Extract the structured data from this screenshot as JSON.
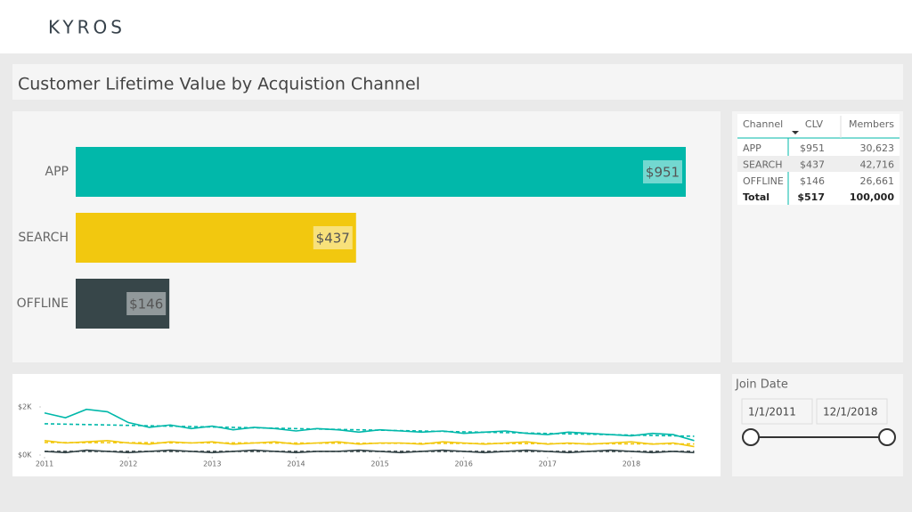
{
  "header": {
    "logo": "KYROS"
  },
  "title": "Customer Lifetime Value by Acquistion Channel",
  "bar_chart": {
    "type": "bar",
    "orientation": "horizontal",
    "categories": [
      "APP",
      "SEARCH",
      "OFFLINE"
    ],
    "values": [
      951,
      437,
      146
    ],
    "value_labels": [
      "$951",
      "$437",
      "$146"
    ],
    "colors": [
      "#01b8aa",
      "#f2c80f",
      "#374649"
    ]
  },
  "table": {
    "columns": [
      "Channel",
      "CLV",
      "Members"
    ],
    "rows": [
      [
        "APP",
        "$951",
        "30,623"
      ],
      [
        "SEARCH",
        "$437",
        "42,716"
      ],
      [
        "OFFLINE",
        "$146",
        "26,661"
      ]
    ],
    "total": [
      "Total",
      "$517",
      "100,000"
    ]
  },
  "line_chart": {
    "type": "line",
    "x": [
      2011,
      2011.25,
      2011.5,
      2011.75,
      2012,
      2012.25,
      2012.5,
      2012.75,
      2013,
      2013.25,
      2013.5,
      2013.75,
      2014,
      2014.25,
      2014.5,
      2014.75,
      2015,
      2015.25,
      2015.5,
      2015.75,
      2016,
      2016.25,
      2016.5,
      2016.75,
      2017,
      2017.25,
      2017.5,
      2017.75,
      2018,
      2018.25,
      2018.5,
      2018.75
    ],
    "xlim": [
      2011,
      2019
    ],
    "xticks": [
      2011,
      2012,
      2013,
      2014,
      2015,
      2016,
      2017,
      2018
    ],
    "ylim": [
      0,
      2000
    ],
    "yticks": [
      {
        "value": 0,
        "label": "$0K"
      },
      {
        "value": 2000,
        "label": "$2K"
      }
    ],
    "series": [
      {
        "color": "#01b8aa",
        "values": [
          1750,
          1550,
          1900,
          1800,
          1350,
          1150,
          1250,
          1100,
          1200,
          1050,
          1150,
          1100,
          1000,
          1100,
          1050,
          950,
          1050,
          1000,
          950,
          1000,
          900,
          950,
          1000,
          900,
          850,
          950,
          900,
          850,
          800,
          900,
          850,
          600
        ],
        "trend": [
          1300,
          780
        ]
      },
      {
        "color": "#f2c80f",
        "values": [
          600,
          500,
          550,
          600,
          500,
          450,
          550,
          500,
          550,
          450,
          500,
          550,
          450,
          500,
          550,
          450,
          500,
          500,
          450,
          550,
          500,
          450,
          500,
          550,
          450,
          500,
          450,
          500,
          550,
          450,
          500,
          350
        ],
        "trend": [
          520,
          460
        ]
      },
      {
        "color": "#374649",
        "values": [
          150,
          100,
          200,
          150,
          100,
          150,
          200,
          150,
          100,
          150,
          200,
          150,
          100,
          150,
          150,
          200,
          150,
          100,
          150,
          200,
          150,
          100,
          150,
          200,
          150,
          100,
          150,
          200,
          150,
          100,
          150,
          100
        ],
        "trend": [
          150,
          150
        ]
      }
    ]
  },
  "slicer": {
    "label": "Join Date",
    "start": "1/1/2011",
    "end": "12/1/2018"
  }
}
